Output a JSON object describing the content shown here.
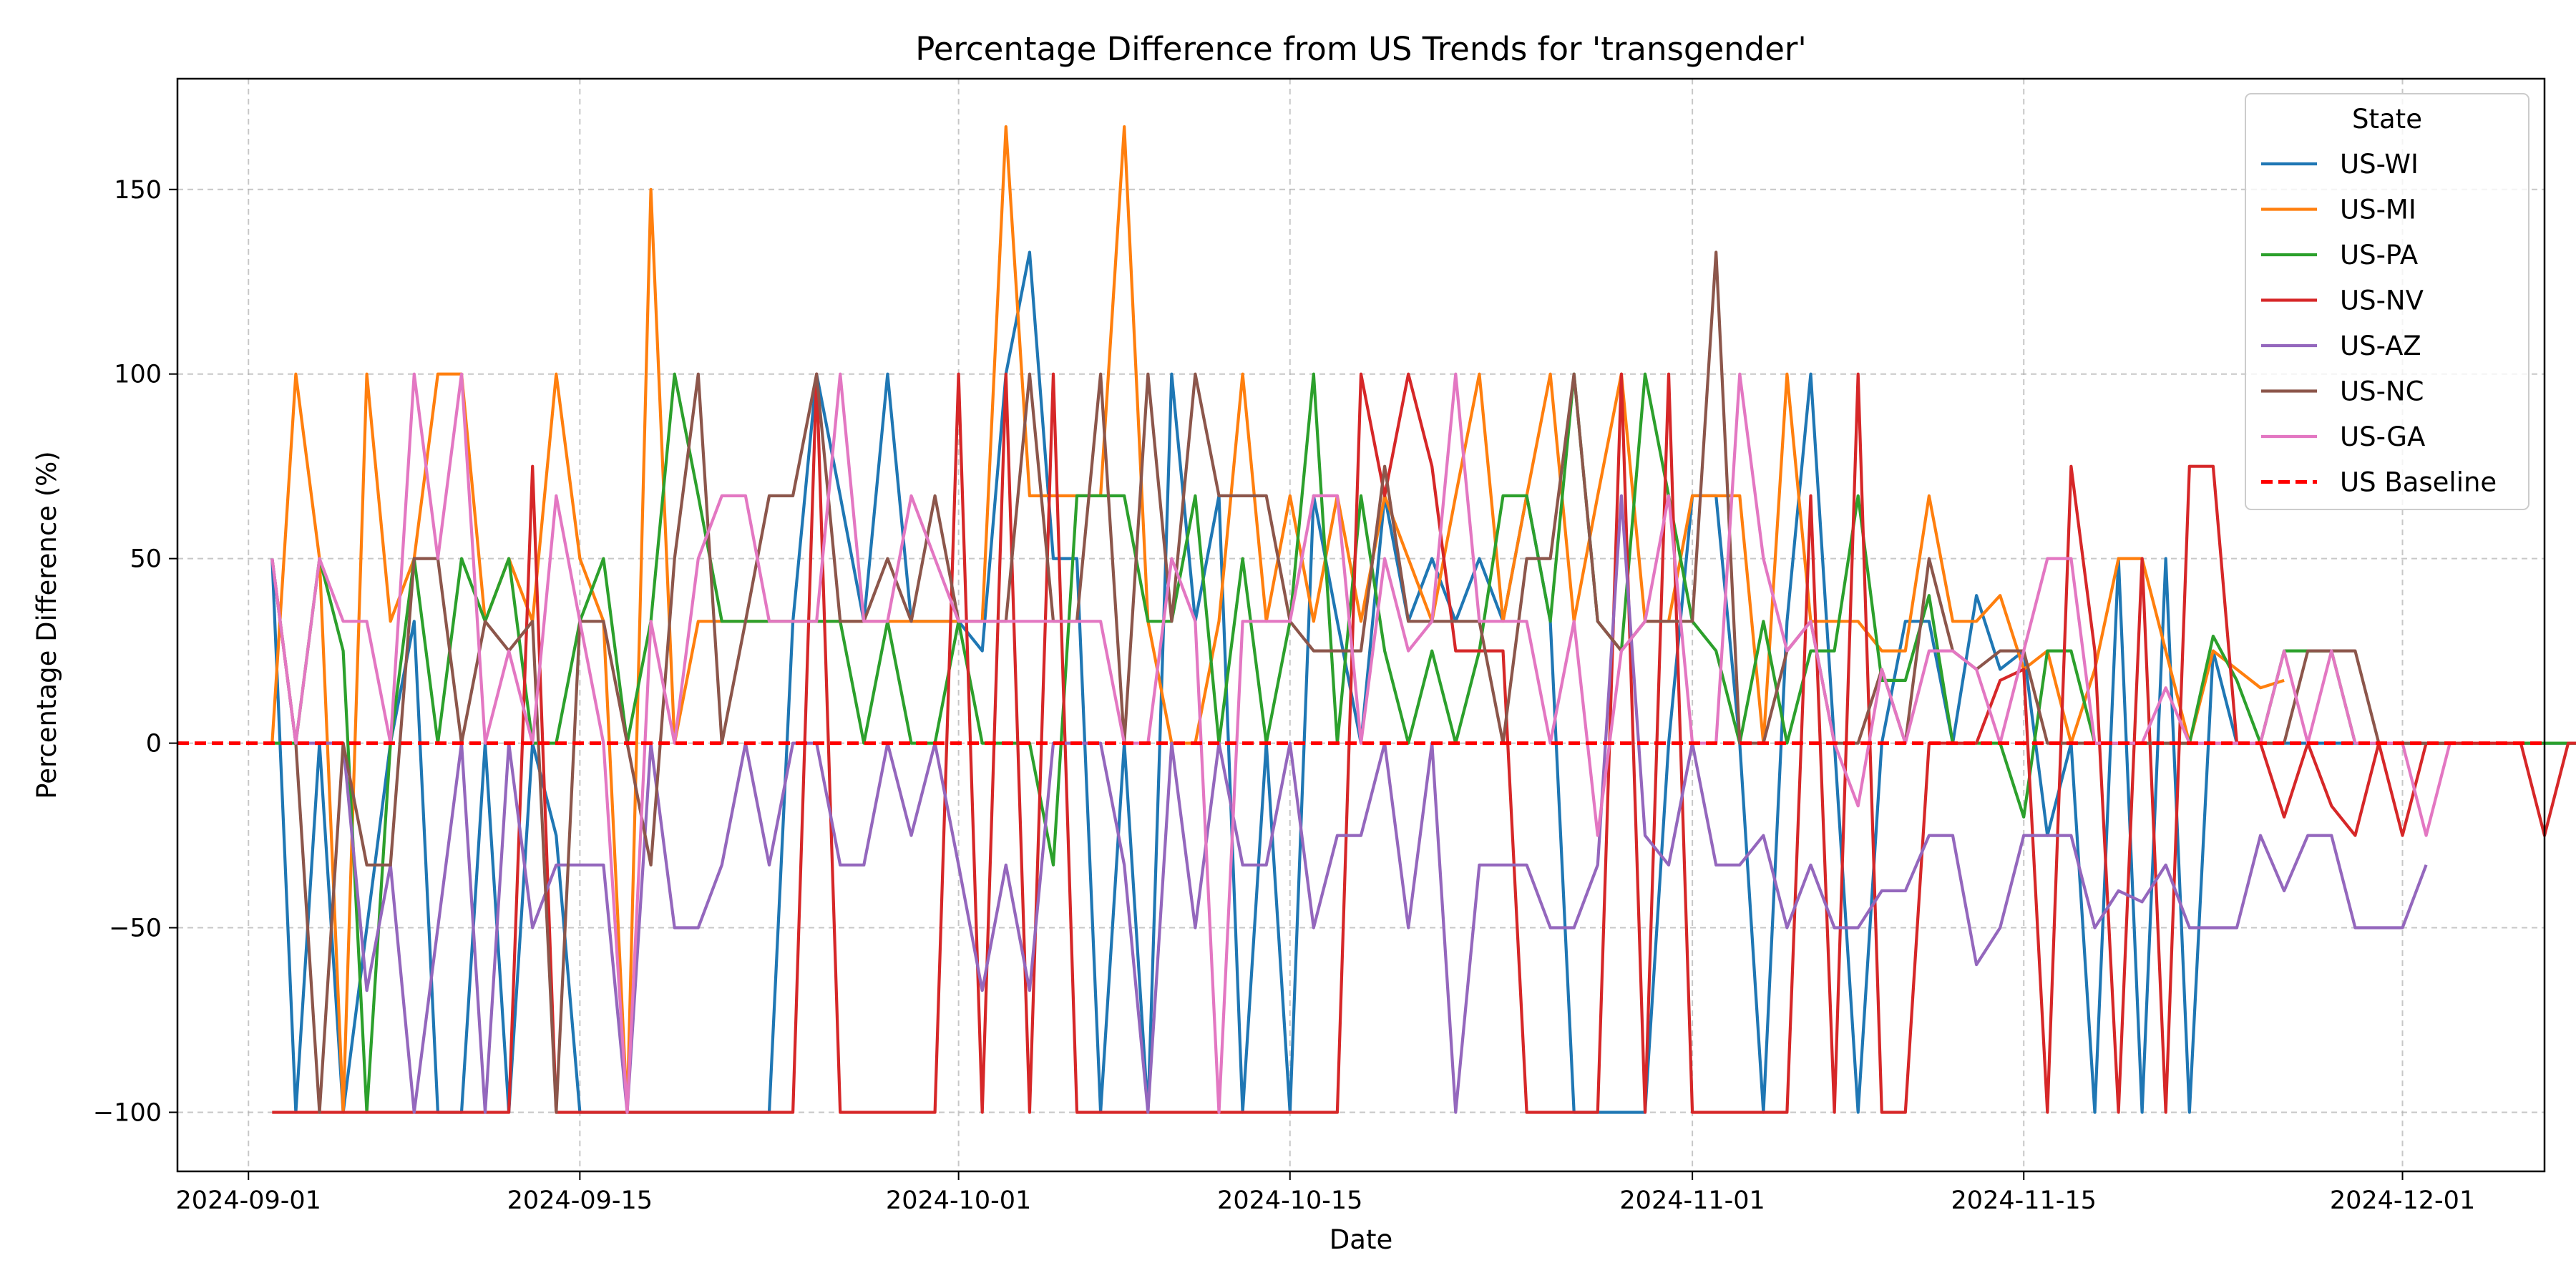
{
  "chart_data": {
    "type": "line",
    "title": "Percentage Difference from US Trends for 'transgender'",
    "xlabel": "Date",
    "ylabel": "Percentage Difference (%)",
    "x_start": "2024-09-02",
    "x_step_days": 1,
    "xlim": [
      "2024-08-29",
      "2024-12-07"
    ],
    "ylim": [
      -116,
      180
    ],
    "x_ticks": [
      "2024-09-01",
      "2024-09-15",
      "2024-10-01",
      "2024-10-15",
      "2024-11-01",
      "2024-11-15",
      "2024-12-01"
    ],
    "y_ticks": [
      -100,
      -50,
      0,
      50,
      100,
      150
    ],
    "y_tick_labels": [
      "−100",
      "−50",
      "0",
      "50",
      "100",
      "150"
    ],
    "grid": true,
    "legend": {
      "title": "State",
      "position": "top-right"
    },
    "series": [
      {
        "name": "US-WI",
        "color": "#1f77b4",
        "values": [
          50,
          -100,
          0,
          -100,
          -50,
          0,
          33,
          -100,
          -100,
          0,
          -100,
          0,
          -25,
          -100,
          -100,
          -100,
          -100,
          -100,
          -100,
          -100,
          -100,
          -100,
          33,
          100,
          67,
          33,
          100,
          33,
          33,
          33,
          25,
          100,
          133,
          50,
          50,
          -100,
          0,
          -100,
          100,
          33,
          67,
          -100,
          0,
          -100,
          67,
          33,
          0,
          67,
          33,
          50,
          33,
          50,
          33,
          67,
          33,
          -100,
          -100,
          -100,
          -100,
          0,
          67,
          67,
          0,
          -100,
          33,
          100,
          0,
          -100,
          0,
          33,
          33,
          0,
          40,
          20,
          25,
          -25,
          0,
          -100,
          50,
          -100,
          50,
          -100,
          25,
          0,
          0,
          0,
          0,
          0,
          0,
          0,
          0,
          0,
          0,
          0,
          0,
          0,
          0,
          0,
          0,
          0,
          0,
          0
        ]
      },
      {
        "name": "US-MI",
        "color": "#ff7f0e",
        "values": [
          0,
          100,
          50,
          -100,
          100,
          33,
          50,
          100,
          100,
          33,
          50,
          33,
          100,
          50,
          33,
          -100,
          150,
          0,
          33,
          33,
          33,
          33,
          33,
          33,
          33,
          33,
          33,
          33,
          33,
          33,
          33,
          167,
          67,
          67,
          67,
          67,
          167,
          33,
          0,
          0,
          33,
          100,
          33,
          67,
          33,
          67,
          33,
          67,
          50,
          33,
          67,
          100,
          33,
          67,
          100,
          33,
          67,
          100,
          33,
          33,
          67,
          67,
          67,
          0,
          100,
          33,
          33,
          33,
          25,
          25,
          67,
          33,
          33,
          40,
          20,
          25,
          0,
          20,
          50,
          50,
          25,
          0,
          25,
          20,
          15,
          17,
          null,
          null,
          null,
          null,
          null,
          null,
          null,
          null,
          null,
          null,
          null,
          null,
          null,
          null,
          null,
          null
        ]
      },
      {
        "name": "US-PA",
        "color": "#2ca02c",
        "values": [
          0,
          0,
          50,
          25,
          -100,
          0,
          50,
          0,
          50,
          33,
          50,
          0,
          0,
          33,
          50,
          0,
          33,
          100,
          67,
          33,
          33,
          33,
          33,
          33,
          33,
          0,
          33,
          0,
          0,
          33,
          0,
          0,
          0,
          -33,
          67,
          67,
          67,
          33,
          33,
          67,
          0,
          50,
          0,
          33,
          100,
          0,
          67,
          25,
          0,
          25,
          0,
          25,
          67,
          67,
          33,
          100,
          33,
          25,
          100,
          67,
          33,
          25,
          0,
          33,
          0,
          25,
          25,
          67,
          17,
          17,
          40,
          0,
          0,
          0,
          -20,
          25,
          25,
          0,
          0,
          0,
          0,
          0,
          29,
          17,
          0,
          25,
          25,
          25,
          0,
          0,
          0,
          0,
          0,
          0,
          0,
          0,
          0,
          0,
          0,
          0,
          0,
          0
        ]
      },
      {
        "name": "US-NV",
        "color": "#d62728",
        "values": [
          -100,
          -100,
          -100,
          -100,
          -100,
          -100,
          -100,
          -100,
          -100,
          -100,
          -100,
          75,
          -100,
          -100,
          -100,
          -100,
          -100,
          -100,
          -100,
          -100,
          -100,
          -100,
          -100,
          100,
          -100,
          -100,
          -100,
          -100,
          -100,
          100,
          -100,
          100,
          -100,
          100,
          -100,
          -100,
          -100,
          -100,
          -100,
          -100,
          -100,
          -100,
          -100,
          -100,
          -100,
          -100,
          100,
          67,
          100,
          75,
          25,
          25,
          25,
          -100,
          -100,
          -100,
          -100,
          100,
          -100,
          100,
          -100,
          -100,
          -100,
          -100,
          -100,
          67,
          -100,
          100,
          -100,
          -100,
          0,
          0,
          0,
          17,
          20,
          -100,
          75,
          25,
          -100,
          50,
          -100,
          75,
          75,
          0,
          0,
          -20,
          0,
          -17,
          -25,
          0,
          -25,
          0,
          0,
          0,
          0,
          0,
          -25,
          0,
          0,
          0,
          0,
          0
        ]
      },
      {
        "name": "US-AZ",
        "color": "#9467bd",
        "values": [
          50,
          0,
          0,
          0,
          -67,
          -33,
          -100,
          -50,
          0,
          -100,
          0,
          -50,
          -33,
          -33,
          -33,
          -100,
          0,
          -50,
          -50,
          -33,
          0,
          -33,
          0,
          0,
          -33,
          -33,
          0,
          -25,
          0,
          -33,
          -67,
          -33,
          -67,
          0,
          0,
          0,
          -33,
          -100,
          0,
          -50,
          0,
          -33,
          -33,
          0,
          -50,
          -25,
          -25,
          0,
          -50,
          0,
          -100,
          -33,
          -33,
          -33,
          -50,
          -50,
          -33,
          67,
          -25,
          -33,
          0,
          -33,
          -33,
          -25,
          -50,
          -33,
          -50,
          -50,
          -40,
          -40,
          -25,
          -25,
          -60,
          -50,
          -25,
          -25,
          -25,
          -50,
          -40,
          -43,
          -33,
          -50,
          -50,
          -50,
          -25,
          -40,
          -25,
          -25,
          -50,
          -50,
          -50,
          -33,
          null,
          null,
          null,
          null,
          null,
          null,
          null,
          null,
          null,
          null
        ]
      },
      {
        "name": "US-NC",
        "color": "#8c564b",
        "values": [
          50,
          0,
          -100,
          0,
          -33,
          -33,
          50,
          50,
          0,
          33,
          25,
          33,
          -100,
          33,
          33,
          0,
          -33,
          50,
          100,
          0,
          33,
          67,
          67,
          100,
          33,
          33,
          50,
          33,
          67,
          33,
          33,
          33,
          100,
          33,
          33,
          100,
          0,
          100,
          33,
          100,
          67,
          67,
          67,
          33,
          25,
          25,
          25,
          75,
          33,
          33,
          33,
          33,
          0,
          50,
          50,
          100,
          33,
          25,
          33,
          33,
          33,
          133,
          0,
          0,
          25,
          33,
          0,
          0,
          20,
          0,
          50,
          25,
          20,
          25,
          25,
          0,
          0,
          0,
          0,
          0,
          0,
          0,
          0,
          0,
          0,
          0,
          25,
          25,
          25,
          0,
          0,
          0,
          0,
          null,
          null,
          null,
          null,
          null,
          null,
          null,
          null,
          null
        ]
      },
      {
        "name": "US-GA",
        "color": "#e377c2",
        "values": [
          50,
          0,
          50,
          33,
          33,
          0,
          100,
          50,
          100,
          0,
          25,
          0,
          67,
          33,
          0,
          -100,
          33,
          0,
          50,
          67,
          67,
          33,
          33,
          33,
          100,
          33,
          33,
          67,
          50,
          33,
          33,
          33,
          33,
          33,
          33,
          33,
          0,
          0,
          50,
          33,
          -100,
          33,
          33,
          33,
          67,
          67,
          0,
          50,
          25,
          33,
          100,
          33,
          33,
          33,
          0,
          33,
          -25,
          25,
          33,
          67,
          0,
          0,
          100,
          50,
          25,
          33,
          0,
          -17,
          20,
          0,
          25,
          25,
          20,
          0,
          25,
          50,
          50,
          0,
          0,
          0,
          15,
          0,
          0,
          0,
          0,
          25,
          0,
          25,
          0,
          0,
          0,
          -25,
          0,
          null,
          null,
          null,
          null,
          null,
          null,
          null,
          null,
          null
        ]
      },
      {
        "name": "US Baseline",
        "color": "#ff0000",
        "dashed": true,
        "values": [
          0,
          0
        ],
        "span": "full"
      }
    ]
  }
}
